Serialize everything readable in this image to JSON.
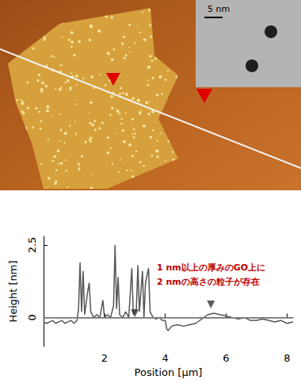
{
  "afm_image": {
    "inset_scale_bar_label": "5 nm"
  },
  "chart_data": {
    "type": "line",
    "x_label": "Position [μm]",
    "y_label": "Height [nm]",
    "xlim": [
      0,
      8.2
    ],
    "xticks": [
      2,
      4,
      6,
      8
    ],
    "ylim": [
      -1,
      2.8
    ],
    "yticks": [
      0,
      2.5
    ],
    "grid": false,
    "baseline": 0,
    "annotation": [
      "1 nm以上の厚みのGO上に",
      "2 nmの高さの粒子が存在"
    ],
    "annotation_color": "#c00000",
    "series": [
      {
        "color": "#555555",
        "x": [
          0.0,
          0.1,
          0.2,
          0.3,
          0.4,
          0.5,
          0.6,
          0.7,
          0.8,
          0.9,
          1.0,
          1.1,
          1.15,
          1.2,
          1.25,
          1.3,
          1.35,
          1.45,
          1.5,
          1.55,
          1.65,
          1.75,
          1.85,
          1.95,
          2.0,
          2.1,
          2.2,
          2.3,
          2.35,
          2.4,
          2.45,
          2.5,
          2.6,
          2.7,
          2.8,
          2.9,
          2.95,
          3.05,
          3.1,
          3.15,
          3.25,
          3.3,
          3.35,
          3.45,
          3.5,
          3.6,
          3.7,
          3.8,
          3.9,
          4.0,
          4.05,
          4.1,
          4.2,
          4.4,
          4.6,
          4.8,
          5.0,
          5.2,
          5.4,
          5.6,
          5.8,
          6.0,
          6.2,
          6.4,
          6.6,
          6.8,
          7.0,
          7.2,
          7.4,
          7.6,
          7.8,
          8.0,
          8.2
        ],
        "values": [
          -0.15,
          -0.2,
          -0.15,
          -0.1,
          -0.2,
          -0.15,
          -0.1,
          -0.2,
          -0.15,
          -0.1,
          -0.2,
          -0.1,
          0.3,
          1.9,
          0.2,
          1.6,
          0.1,
          0.9,
          1.2,
          0.2,
          0.0,
          0.1,
          0.0,
          0.6,
          0.0,
          0.1,
          0.0,
          0.4,
          2.5,
          0.3,
          1.4,
          0.1,
          0.0,
          0.2,
          0.0,
          1.7,
          0.1,
          0.3,
          1.8,
          0.2,
          1.6,
          0.0,
          1.2,
          1.7,
          0.2,
          0.0,
          -0.05,
          0.0,
          -0.1,
          -0.1,
          -0.4,
          -0.45,
          -0.3,
          -0.25,
          -0.3,
          -0.25,
          -0.2,
          -0.05,
          0.1,
          0.15,
          0.1,
          0.05,
          0.0,
          -0.05,
          0.0,
          -0.1,
          -0.1,
          -0.05,
          -0.1,
          -0.15,
          -0.1,
          -0.2,
          -0.15
        ]
      }
    ],
    "markers": {
      "x": [
        3.0,
        5.5
      ],
      "y": [
        0.15,
        0.45
      ],
      "color": "#333333",
      "marker": "triangle"
    }
  }
}
